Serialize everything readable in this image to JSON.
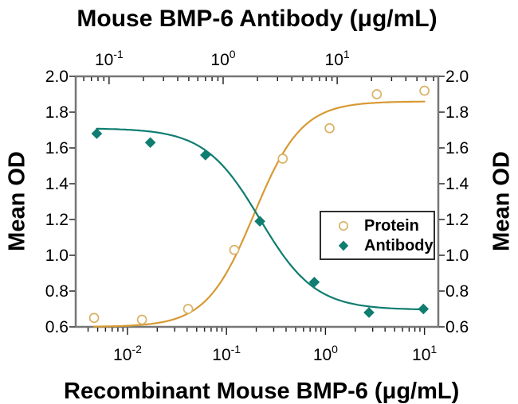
{
  "figure": {
    "top_title": "Mouse BMP-6 Antibody (μg/mL)",
    "bottom_title": "Recombinant Mouse BMP-6 (μg/mL)",
    "left_axis_title": "Mean OD",
    "right_axis_title": "Mean OD"
  },
  "legend": {
    "items": [
      {
        "label": "Protein",
        "marker": "open-circle",
        "color": "#D9B266"
      },
      {
        "label": "Antibody",
        "marker": "filled-diamond",
        "color": "#0F7D70"
      }
    ]
  },
  "style": {
    "frame_color": "#767676",
    "tick_color": "#1a1a1a",
    "protein_curve_color": "#D79A33",
    "protein_marker_color": "#D9B266",
    "antibody_color": "#0F7D70",
    "background": "#ffffff"
  },
  "chart_data": {
    "type": "line",
    "title": "Mouse BMP-6 Antibody (μg/mL)",
    "xlabel_bottom": "Recombinant Mouse BMP-6 (μg/mL)",
    "xlabel_top": "Mouse BMP-6 Antibody (μg/mL)",
    "ylabel": "Mean OD",
    "grid": false,
    "legend_position": "inside-right",
    "x_bottom": {
      "scale": "log",
      "min": 0.003,
      "max": 13.8,
      "major_ticks": [
        {
          "value": 0.01,
          "base": "10",
          "exp": "-2"
        },
        {
          "value": 0.1,
          "base": "10",
          "exp": "-1"
        },
        {
          "value": 1,
          "base": "10",
          "exp": "0"
        },
        {
          "value": 10,
          "base": "10",
          "exp": "1"
        }
      ]
    },
    "x_top": {
      "scale": "log",
      "min": 0.051,
      "max": 77,
      "major_ticks": [
        {
          "value": 0.1,
          "base": "10",
          "exp": "-1"
        },
        {
          "value": 1,
          "base": "10",
          "exp": "0"
        },
        {
          "value": 10,
          "base": "10",
          "exp": "1"
        }
      ]
    },
    "y": {
      "min": 0.6,
      "max": 2.0,
      "ticks": [
        {
          "value": 0.6,
          "label": "0.6"
        },
        {
          "value": 0.8,
          "label": "0.8"
        },
        {
          "value": 1.0,
          "label": "1.0"
        },
        {
          "value": 1.2,
          "label": "1.2"
        },
        {
          "value": 1.4,
          "label": "1.4"
        },
        {
          "value": 1.6,
          "label": "1.6"
        },
        {
          "value": 1.8,
          "label": "1.8"
        },
        {
          "value": 2.0,
          "label": "2.0"
        }
      ]
    },
    "series": [
      {
        "name": "Protein",
        "x_axis": "bottom",
        "marker": "open-circle",
        "marker_color": "#D9B266",
        "line_color": "#D79A33",
        "points": [
          {
            "x": 0.0046,
            "y": 0.65
          },
          {
            "x": 0.014,
            "y": 0.64
          },
          {
            "x": 0.041,
            "y": 0.7
          },
          {
            "x": 0.12,
            "y": 1.03
          },
          {
            "x": 0.37,
            "y": 1.54
          },
          {
            "x": 1.1,
            "y": 1.71
          },
          {
            "x": 3.3,
            "y": 1.9
          },
          {
            "x": 10,
            "y": 1.92
          }
        ],
        "fit_4pl": {
          "bottom": 0.6,
          "top": 1.86,
          "ec50": 0.19,
          "hill": 1.8,
          "from": 0.0046,
          "to": 10
        }
      },
      {
        "name": "Antibody",
        "x_axis": "top",
        "marker": "filled-diamond",
        "marker_color": "#0F7D70",
        "line_color": "#0F7D70",
        "points": [
          {
            "x": 0.078,
            "y": 1.68
          },
          {
            "x": 0.23,
            "y": 1.63
          },
          {
            "x": 0.7,
            "y": 1.56
          },
          {
            "x": 2.1,
            "y": 1.19
          },
          {
            "x": 6.3,
            "y": 0.85
          },
          {
            "x": 19,
            "y": 0.68
          },
          {
            "x": 57,
            "y": 0.7
          }
        ],
        "fit_4pl": {
          "bottom": 0.695,
          "top": 1.71,
          "ec50": 2.1,
          "hill": -1.8,
          "from": 0.078,
          "to": 57
        }
      }
    ]
  }
}
